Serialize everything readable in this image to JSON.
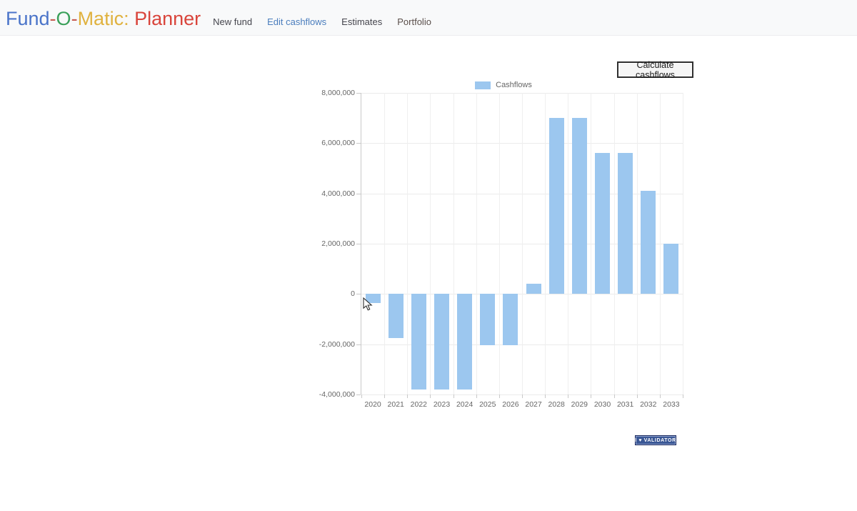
{
  "header": {
    "brand": [
      {
        "text": "Fund",
        "color": "#4a74c9"
      },
      {
        "text": "-",
        "color": "#c75b50"
      },
      {
        "text": "O",
        "color": "#3aa05a"
      },
      {
        "text": "-",
        "color": "#c75b50"
      },
      {
        "text": "Matic:",
        "color": "#e0b23f"
      },
      {
        "text": " Planner",
        "color": "#d9453c"
      }
    ],
    "nav": [
      {
        "label": "New fund",
        "color": "#45454d"
      },
      {
        "label": "Edit cashflows",
        "color": "#4a7dbd"
      },
      {
        "label": "Estimates",
        "color": "#45454d"
      },
      {
        "label": "Portfolio",
        "color": "#5a4f4b"
      }
    ]
  },
  "main": {
    "calculate_button_label": "Calculate cashflows"
  },
  "chart_data": {
    "type": "bar",
    "title": "",
    "xlabel": "",
    "ylabel": "",
    "legend_position": "top",
    "legend": [
      {
        "label": "Cashflows",
        "color": "#9cc7ef"
      }
    ],
    "categories": [
      "2020",
      "2021",
      "2022",
      "2023",
      "2024",
      "2025",
      "2026",
      "2027",
      "2028",
      "2029",
      "2030",
      "2031",
      "2032",
      "2033"
    ],
    "series": [
      {
        "name": "Cashflows",
        "values": [
          -360000,
          -1750000,
          -3800000,
          -3800000,
          -3800000,
          -2050000,
          -2050000,
          420000,
          7000000,
          7000000,
          5600000,
          5600000,
          4100000,
          2000000
        ]
      }
    ],
    "ylim": [
      -4000000,
      8000000
    ],
    "ytick_step": 2000000,
    "ytick_labels": [
      "8,000,000",
      "6,000,000",
      "4,000,000",
      "2,000,000",
      "0",
      "-2,000,000",
      "-4,000,000"
    ],
    "grid": true,
    "bar_color": "#9cc7ef",
    "grid_color": "#ebebeb",
    "axis_color": "#c9c9c9",
    "tick_label_color": "#666666"
  },
  "footer_badge": {
    "text": "I ♥ VALIDATOR"
  }
}
